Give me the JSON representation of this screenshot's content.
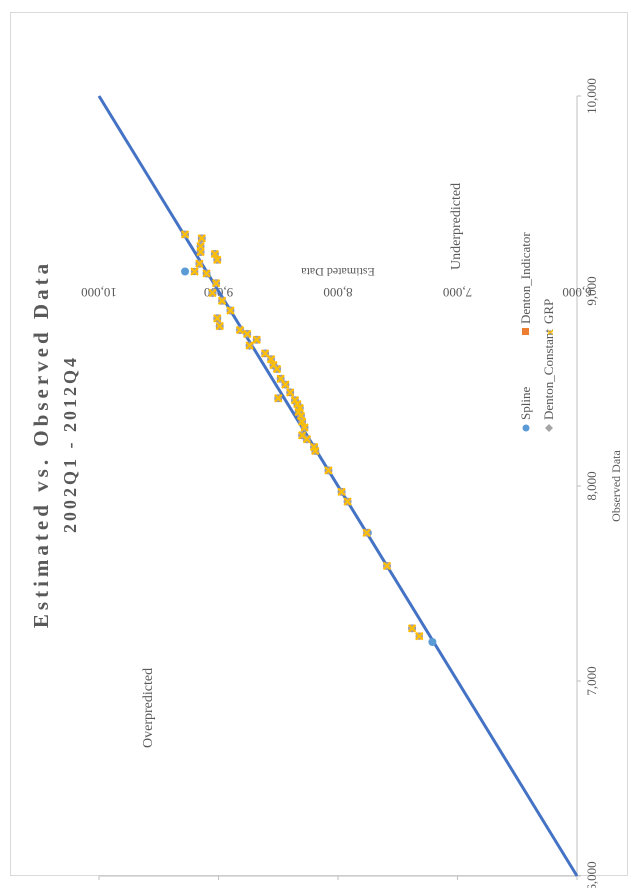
{
  "chart_data": {
    "type": "scatter",
    "title": "Estimated vs. Observed Data",
    "subtitle": "2002Q1 - 2012Q4",
    "xlabel": "Observed Data",
    "ylabel": "Estimated Data",
    "xlim": [
      6000,
      10000
    ],
    "ylim": [
      6000,
      10000
    ],
    "xticks": [
      "6,000",
      "7,000",
      "8,000",
      "9,000",
      "10,000"
    ],
    "yticks": [
      "6,000",
      "7,000",
      "8,000",
      "9,000",
      "10,000"
    ],
    "annotations": [
      "Overpredicted",
      "Underpredicted"
    ],
    "legend_position": "right",
    "grid": false,
    "reference_line": {
      "x": [
        6000,
        10000
      ],
      "y": [
        6000,
        10000
      ],
      "color": "#4472c4"
    },
    "series": [
      {
        "name": "Spline",
        "marker": "circle",
        "color": "#5b9bd5",
        "points": [
          [
            7200,
            7210
          ],
          [
            7270,
            7380
          ],
          [
            7590,
            7590
          ],
          [
            7760,
            7750
          ],
          [
            7920,
            7920
          ],
          [
            7970,
            7970
          ],
          [
            8080,
            8080
          ],
          [
            8180,
            8190
          ],
          [
            8200,
            8200
          ],
          [
            8240,
            8260
          ],
          [
            8260,
            8300
          ],
          [
            8300,
            8280
          ],
          [
            8330,
            8300
          ],
          [
            8360,
            8310
          ],
          [
            8380,
            8330
          ],
          [
            8400,
            8320
          ],
          [
            8420,
            8340
          ],
          [
            8440,
            8360
          ],
          [
            8450,
            8500
          ],
          [
            8480,
            8400
          ],
          [
            8520,
            8440
          ],
          [
            8550,
            8480
          ],
          [
            8600,
            8510
          ],
          [
            8620,
            8540
          ],
          [
            8650,
            8560
          ],
          [
            8680,
            8610
          ],
          [
            8720,
            8740
          ],
          [
            8750,
            8680
          ],
          [
            8780,
            8760
          ],
          [
            8800,
            8820
          ],
          [
            8820,
            8990
          ],
          [
            8860,
            9010
          ],
          [
            8900,
            8900
          ],
          [
            8950,
            8970
          ],
          [
            8990,
            9050
          ],
          [
            9040,
            9020
          ],
          [
            9090,
            9100
          ],
          [
            9100,
            9280
          ],
          [
            9140,
            9160
          ],
          [
            9160,
            9010
          ],
          [
            9190,
            9030
          ],
          [
            9200,
            9150
          ],
          [
            9230,
            9150
          ],
          [
            9270,
            9140
          ],
          [
            9290,
            9280
          ]
        ]
      },
      {
        "name": "Denton_Indicator",
        "marker": "square",
        "color": "#ed7d31",
        "points": [
          [
            7230,
            7320
          ],
          [
            7270,
            7380
          ],
          [
            7590,
            7590
          ],
          [
            7760,
            7760
          ],
          [
            7920,
            7920
          ],
          [
            7970,
            7970
          ],
          [
            8080,
            8080
          ],
          [
            8180,
            8190
          ],
          [
            8200,
            8200
          ],
          [
            8240,
            8260
          ],
          [
            8260,
            8300
          ],
          [
            8300,
            8280
          ],
          [
            8330,
            8300
          ],
          [
            8360,
            8310
          ],
          [
            8380,
            8330
          ],
          [
            8400,
            8320
          ],
          [
            8420,
            8340
          ],
          [
            8440,
            8360
          ],
          [
            8450,
            8500
          ],
          [
            8480,
            8400
          ],
          [
            8520,
            8440
          ],
          [
            8550,
            8480
          ],
          [
            8600,
            8510
          ],
          [
            8620,
            8540
          ],
          [
            8650,
            8560
          ],
          [
            8680,
            8610
          ],
          [
            8720,
            8740
          ],
          [
            8750,
            8680
          ],
          [
            8780,
            8760
          ],
          [
            8800,
            8820
          ],
          [
            8820,
            8990
          ],
          [
            8860,
            9010
          ],
          [
            8900,
            8900
          ],
          [
            8950,
            8970
          ],
          [
            8990,
            9050
          ],
          [
            9040,
            9020
          ],
          [
            9090,
            9100
          ],
          [
            9100,
            9200
          ],
          [
            9140,
            9160
          ],
          [
            9160,
            9010
          ],
          [
            9190,
            9030
          ],
          [
            9200,
            9150
          ],
          [
            9230,
            9150
          ],
          [
            9270,
            9140
          ],
          [
            9290,
            9280
          ]
        ]
      },
      {
        "name": "Denton_Constant",
        "marker": "diamond",
        "color": "#a5a5a5",
        "points": [
          [
            7230,
            7320
          ],
          [
            7270,
            7380
          ],
          [
            7590,
            7590
          ],
          [
            7760,
            7760
          ],
          [
            7920,
            7920
          ],
          [
            7970,
            7970
          ],
          [
            8080,
            8080
          ],
          [
            8180,
            8190
          ],
          [
            8200,
            8200
          ],
          [
            8240,
            8260
          ],
          [
            8260,
            8300
          ],
          [
            8300,
            8280
          ],
          [
            8330,
            8300
          ],
          [
            8360,
            8310
          ],
          [
            8380,
            8330
          ],
          [
            8400,
            8320
          ],
          [
            8420,
            8340
          ],
          [
            8440,
            8360
          ],
          [
            8450,
            8500
          ],
          [
            8480,
            8400
          ],
          [
            8520,
            8440
          ],
          [
            8550,
            8480
          ],
          [
            8600,
            8510
          ],
          [
            8620,
            8540
          ],
          [
            8650,
            8560
          ],
          [
            8680,
            8610
          ],
          [
            8720,
            8740
          ],
          [
            8750,
            8680
          ],
          [
            8780,
            8760
          ],
          [
            8800,
            8820
          ],
          [
            8820,
            8990
          ],
          [
            8860,
            9010
          ],
          [
            8900,
            8900
          ],
          [
            8950,
            8970
          ],
          [
            8990,
            9050
          ],
          [
            9040,
            9020
          ],
          [
            9090,
            9100
          ],
          [
            9100,
            9200
          ],
          [
            9140,
            9160
          ],
          [
            9160,
            9010
          ],
          [
            9190,
            9030
          ],
          [
            9200,
            9150
          ],
          [
            9230,
            9150
          ],
          [
            9270,
            9140
          ],
          [
            9290,
            9280
          ]
        ]
      },
      {
        "name": "GRP",
        "marker": "x",
        "color": "#ffc000",
        "points": [
          [
            7230,
            7320
          ],
          [
            7270,
            7380
          ],
          [
            7590,
            7590
          ],
          [
            7760,
            7760
          ],
          [
            7920,
            7920
          ],
          [
            7970,
            7970
          ],
          [
            8080,
            8080
          ],
          [
            8180,
            8190
          ],
          [
            8200,
            8200
          ],
          [
            8240,
            8260
          ],
          [
            8260,
            8300
          ],
          [
            8300,
            8280
          ],
          [
            8330,
            8300
          ],
          [
            8360,
            8310
          ],
          [
            8380,
            8330
          ],
          [
            8400,
            8320
          ],
          [
            8420,
            8340
          ],
          [
            8440,
            8360
          ],
          [
            8450,
            8500
          ],
          [
            8480,
            8400
          ],
          [
            8520,
            8440
          ],
          [
            8550,
            8480
          ],
          [
            8600,
            8510
          ],
          [
            8620,
            8540
          ],
          [
            8650,
            8560
          ],
          [
            8680,
            8610
          ],
          [
            8720,
            8740
          ],
          [
            8750,
            8680
          ],
          [
            8780,
            8760
          ],
          [
            8800,
            8820
          ],
          [
            8820,
            8990
          ],
          [
            8860,
            9010
          ],
          [
            8900,
            8900
          ],
          [
            8950,
            8970
          ],
          [
            8990,
            9050
          ],
          [
            9040,
            9020
          ],
          [
            9090,
            9100
          ],
          [
            9100,
            9200
          ],
          [
            9140,
            9160
          ],
          [
            9160,
            9010
          ],
          [
            9190,
            9030
          ],
          [
            9200,
            9150
          ],
          [
            9230,
            9150
          ],
          [
            9270,
            9140
          ],
          [
            9290,
            9280
          ]
        ]
      }
    ]
  }
}
